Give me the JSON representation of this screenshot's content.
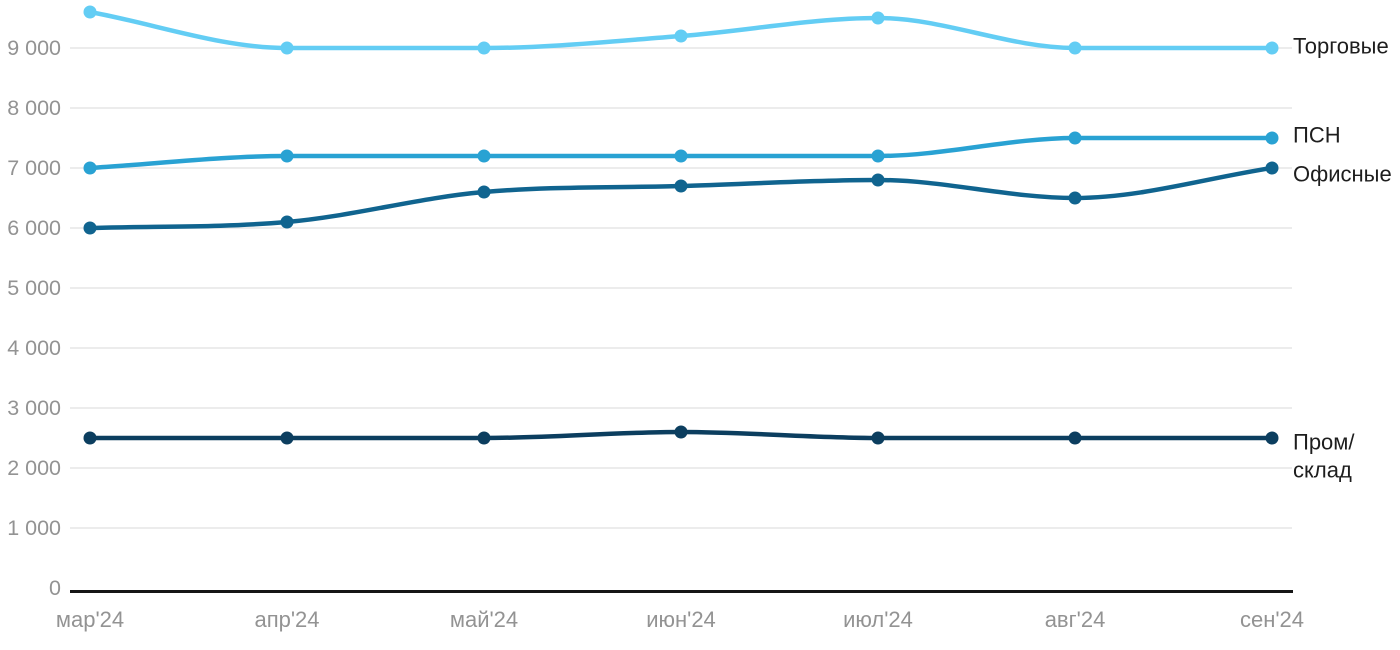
{
  "chart_data": {
    "type": "line",
    "title": "",
    "xlabel": "",
    "ylabel": "",
    "x_categories": [
      "мар'24",
      "апр'24",
      "май'24",
      "июн'24",
      "июл'24",
      "авг'24",
      "сен'24"
    ],
    "series": [
      {
        "name": "Торговые",
        "label_lines": [
          "Торговые"
        ],
        "color": "#63CDF4",
        "values": [
          9600,
          9000,
          9000,
          9200,
          9500,
          9000,
          9000
        ]
      },
      {
        "name": "ПСН",
        "label_lines": [
          "ПСН"
        ],
        "color": "#29A2D3",
        "values": [
          7000,
          7200,
          7200,
          7200,
          7200,
          7500,
          7500
        ]
      },
      {
        "name": "Офисные",
        "label_lines": [
          "Офисные"
        ],
        "color": "#10648F",
        "values": [
          6000,
          6100,
          6600,
          6700,
          6800,
          6500,
          7000
        ]
      },
      {
        "name": "Пром/склад",
        "label_lines": [
          "Пром/",
          "склад"
        ],
        "color": "#0C3E5F",
        "values": [
          2500,
          2500,
          2500,
          2600,
          2500,
          2500,
          2500
        ]
      }
    ],
    "y_ticks": [
      {
        "value": 0,
        "label": "0"
      },
      {
        "value": 1000,
        "label": "1 000"
      },
      {
        "value": 2000,
        "label": "2 000"
      },
      {
        "value": 3000,
        "label": "3 000"
      },
      {
        "value": 4000,
        "label": "4 000"
      },
      {
        "value": 5000,
        "label": "5 000"
      },
      {
        "value": 6000,
        "label": "6 000"
      },
      {
        "value": 7000,
        "label": "7 000"
      },
      {
        "value": 8000,
        "label": "8 000"
      },
      {
        "value": 9000,
        "label": "9 000"
      }
    ],
    "ylim": [
      0,
      9700
    ],
    "grid": true,
    "legend_position": "right-end-of-lines",
    "colors": {
      "gridline": "#e6e6e6",
      "axis_line": "#161616",
      "tick_text": "#939393",
      "series_label_text": "#1e1e1e",
      "background": "#ffffff"
    }
  }
}
